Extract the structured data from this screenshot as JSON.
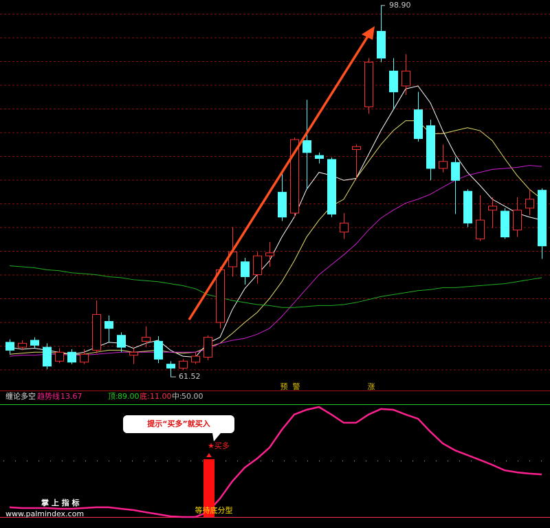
{
  "chart_data": [
    {
      "type": "candlestick",
      "open": [
        65.0,
        64.5,
        65.2,
        64.5,
        63.1,
        64.0,
        63.0,
        64.2,
        67.1,
        65.7,
        63.7,
        65.1,
        65.1,
        62.8,
        62.4,
        63.0,
        63.5,
        67.0,
        72.6,
        73.1,
        71.8,
        73.7,
        80.1,
        78.0,
        85.3,
        83.8,
        83.4,
        76.1,
        84.4,
        88.7,
        96.3,
        92.3,
        90.8,
        88.4,
        86.8,
        82.5,
        83.1,
        80.2,
        75.4,
        78.3,
        78.2,
        76.3,
        78.5,
        80.3
      ],
      "high": [
        65.3,
        65.2,
        65.5,
        64.9,
        64.4,
        64.3,
        64.3,
        69.2,
        67.7,
        66.0,
        64.4,
        66.6,
        65.6,
        63.1,
        63.3,
        64.0,
        65.7,
        72.6,
        76.6,
        73.5,
        74.1,
        75.1,
        82.1,
        85.6,
        89.4,
        84.1,
        83.6,
        78.0,
        84.9,
        93.6,
        98.9,
        93.6,
        94.0,
        90.2,
        87.4,
        84.9,
        83.6,
        80.4,
        79.8,
        79.6,
        78.5,
        79.6,
        80.4,
        80.5
      ],
      "low": [
        63.8,
        64.2,
        64.4,
        62.3,
        62.9,
        62.8,
        62.8,
        63.9,
        65.0,
        64.0,
        62.8,
        64.5,
        62.9,
        61.52,
        62.2,
        62.8,
        63.2,
        66.4,
        71.6,
        70.8,
        70.9,
        72.6,
        77.2,
        77.6,
        80.4,
        83.0,
        77.6,
        75.4,
        81.5,
        88.0,
        93.2,
        88.4,
        89.9,
        85.2,
        81.3,
        82.1,
        77.9,
        76.6,
        75.2,
        76.5,
        75.4,
        75.6,
        77.8,
        73.4
      ],
      "close": [
        64.2,
        64.9,
        64.7,
        62.6,
        64.0,
        63.0,
        63.8,
        67.8,
        66.4,
        64.5,
        64.0,
        65.5,
        63.3,
        62.4,
        63.1,
        63.6,
        65.5,
        72.3,
        74.1,
        71.6,
        73.7,
        74.0,
        77.6,
        85.4,
        84.1,
        83.5,
        77.9,
        77.0,
        84.7,
        93.2,
        93.6,
        90.2,
        92.3,
        85.5,
        82.5,
        83.2,
        81.3,
        77.0,
        77.3,
        78.7,
        75.6,
        78.3,
        79.4,
        74.7
      ],
      "up_color": "#ff3030",
      "down_color": "#54ffff",
      "ylim": [
        60.7,
        99.45
      ],
      "high_mark": {
        "value": 98.9,
        "label": "98.90"
      },
      "low_mark": 61.52,
      "series": [
        {
          "color": "#ffffff",
          "values": [
            64.5,
            64.3,
            64.4,
            64.2,
            64.0,
            63.8,
            64.0,
            64.5,
            65.0,
            64.9,
            64.4,
            64.9,
            65.2,
            64.2,
            63.6,
            63.5,
            64.9,
            65.5,
            68.3,
            70.4,
            71.8,
            73.2,
            75.6,
            77.6,
            80.4,
            82.1,
            81.8,
            81.3,
            81.5,
            83.9,
            86.3,
            88.4,
            90.5,
            90.8,
            89.1,
            86.3,
            83.9,
            82.1,
            80.8,
            79.4,
            78.7,
            78.0,
            77.6,
            77.3
          ]
        },
        {
          "color": "#e6e070",
          "values": [
            63.8,
            63.9,
            64.0,
            64.0,
            63.9,
            63.8,
            63.8,
            64.0,
            64.2,
            64.2,
            64.0,
            64.1,
            64.2,
            64.0,
            63.9,
            64.0,
            64.5,
            64.9,
            65.9,
            67.0,
            68.0,
            69.4,
            71.1,
            73.2,
            75.6,
            77.3,
            78.7,
            79.4,
            81.5,
            83.2,
            84.9,
            86.3,
            87.3,
            87.3,
            86.0,
            86.0,
            86.3,
            86.6,
            86.3,
            85.3,
            83.5,
            81.8,
            80.4,
            79.4
          ]
        },
        {
          "color": "#d020d0",
          "values": [
            63.6,
            63.7,
            63.7,
            63.8,
            63.8,
            63.7,
            63.7,
            63.8,
            63.9,
            64.0,
            64.0,
            64.0,
            64.0,
            64.0,
            64.0,
            64.0,
            64.3,
            64.9,
            65.2,
            65.4,
            65.8,
            66.4,
            67.6,
            69.0,
            70.4,
            71.8,
            72.8,
            73.8,
            74.9,
            76.3,
            77.5,
            78.3,
            79.0,
            79.4,
            79.9,
            80.6,
            81.3,
            81.8,
            82.1,
            82.4,
            82.5,
            82.6,
            82.8,
            82.7
          ]
        },
        {
          "color": "#20b020",
          "values": [
            72.7,
            72.6,
            72.5,
            72.3,
            72.2,
            72.0,
            71.9,
            71.8,
            71.6,
            71.5,
            71.3,
            71.2,
            71.1,
            70.9,
            70.7,
            70.4,
            69.8,
            69.5,
            69.2,
            69.0,
            68.8,
            68.7,
            68.5,
            68.5,
            68.6,
            68.7,
            68.7,
            68.8,
            69.0,
            69.3,
            69.6,
            69.8,
            70.0,
            70.2,
            70.3,
            70.5,
            70.5,
            70.6,
            70.7,
            70.8,
            70.9,
            71.1,
            71.3,
            71.5
          ]
        }
      ],
      "signals": [
        "预",
        "警",
        "涨"
      ]
    },
    {
      "type": "line",
      "title": "缠论多空",
      "ylim": [
        11,
        89
      ],
      "series": [
        {
          "name": "趋势线",
          "legend_value": 13.67,
          "color": "#ff2090",
          "values": [
            17.7,
            17.2,
            17.2,
            17.2,
            16.7,
            16.7,
            17.2,
            17.7,
            17.7,
            16.7,
            15.8,
            14.3,
            12.9,
            11.5,
            11.0,
            11.0,
            14.3,
            23.8,
            35.7,
            45.2,
            51.4,
            59.0,
            71.4,
            81.9,
            85.2,
            87.1,
            81.9,
            76.2,
            76.2,
            81.9,
            85.7,
            85.2,
            81.9,
            79.0,
            70.0,
            61.9,
            57.1,
            53.8,
            50.5,
            47.1,
            43.3,
            41.9,
            41.0,
            40.5
          ]
        },
        {
          "type": "bar",
          "color": "#ff1010",
          "values": [
            null,
            null,
            null,
            null,
            null,
            null,
            null,
            null,
            null,
            null,
            null,
            null,
            null,
            null,
            null,
            null,
            51,
            null,
            null,
            null,
            null,
            null,
            null,
            null,
            null,
            null,
            null,
            null,
            null,
            null,
            null,
            null,
            null,
            null,
            null,
            null,
            null,
            null,
            null,
            null,
            null,
            null,
            null,
            null
          ]
        }
      ],
      "levels": [
        {
          "name": "顶:",
          "value": 89,
          "label": "89.00",
          "color": "#20d020"
        },
        {
          "name": "底:",
          "value": 11,
          "label": "11.00",
          "color": "#ff3050"
        },
        {
          "name": "中:",
          "value": 50,
          "label": "50.00",
          "color": "#c0c0c0"
        }
      ],
      "callout": "提示“买多”就买入",
      "buy": "★买多",
      "wait": "等待底分型"
    }
  ],
  "watermark": {
    "title": "掌 上 指 标",
    "url": "www.palmindex.com"
  }
}
